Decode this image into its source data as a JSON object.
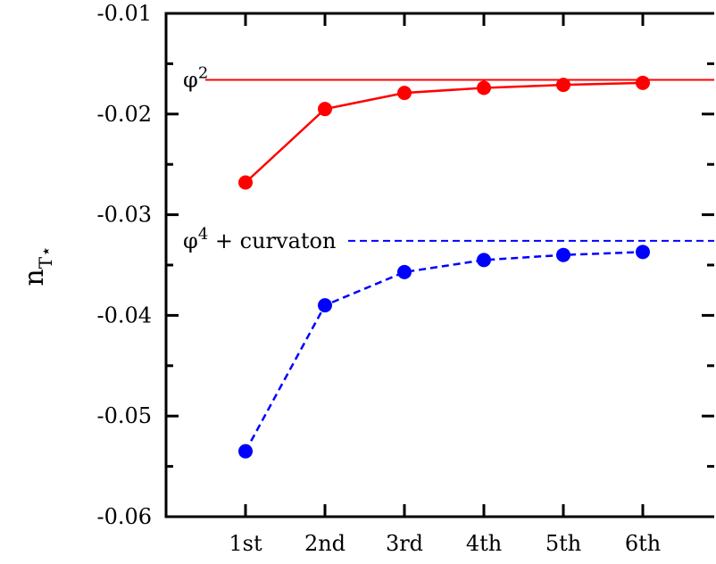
{
  "chart_data": {
    "type": "line",
    "ylabel": "n",
    "ylabel_sub": "T⋆",
    "categories": [
      "1st",
      "2nd",
      "3rd",
      "4th",
      "5th",
      "6th"
    ],
    "ylim": [
      -0.06,
      -0.01
    ],
    "yticks": [
      -0.06,
      -0.05,
      -0.04,
      -0.03,
      -0.02,
      -0.01
    ],
    "ytick_labels": [
      "-0.06",
      "-0.05",
      "-0.04",
      "-0.03",
      "-0.02",
      "-0.01"
    ],
    "grid": false,
    "series": [
      {
        "color": "#ff0000",
        "line_style": "solid",
        "values": [
          -0.0268,
          -0.0195,
          -0.0179,
          -0.0174,
          -0.0171,
          -0.0169
        ],
        "reference": -0.0166,
        "annotation": {
          "base": "φ",
          "sup": "2",
          "rest": ""
        }
      },
      {
        "color": "#0000ff",
        "line_style": "dashed",
        "values": [
          -0.0535,
          -0.039,
          -0.0357,
          -0.0345,
          -0.034,
          -0.0337
        ],
        "reference": -0.0326,
        "annotation": {
          "base": "φ",
          "sup": "4",
          "rest": " + curvaton"
        }
      }
    ]
  }
}
